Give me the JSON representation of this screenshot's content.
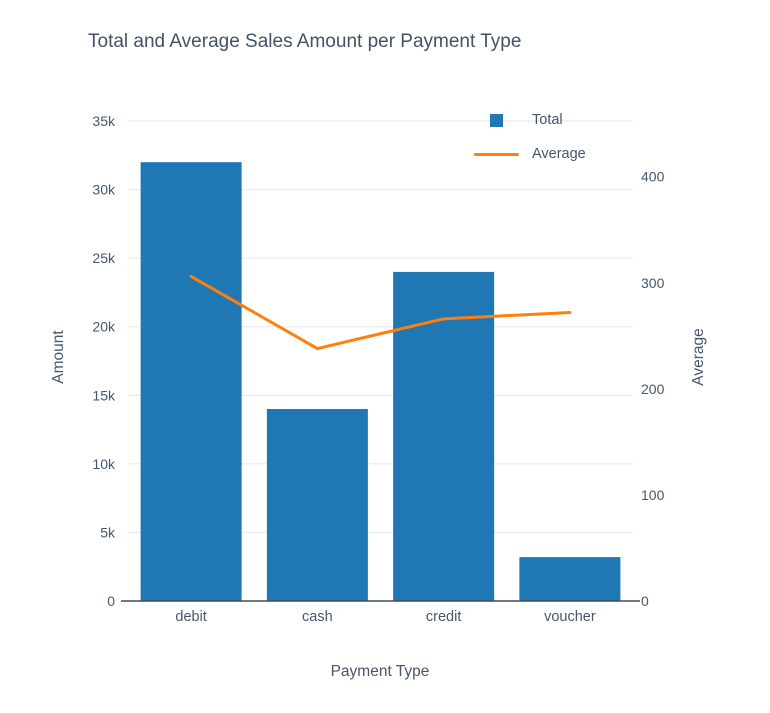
{
  "colors": {
    "bar": "#1f77b4",
    "line": "#ff7f0e",
    "text": "#47566b",
    "title_text": "#445264",
    "grid": "#ebecee",
    "axis": "#444b53",
    "background": "#ffffff"
  },
  "legend": {
    "position": "top-right-inside",
    "items": [
      {
        "label": "Total",
        "marker": "square-swatch",
        "color": "#1f77b4"
      },
      {
        "label": "Average",
        "marker": "line-swatch",
        "color": "#ff7f0e"
      }
    ]
  },
  "chart_data": {
    "type": "combo",
    "title": "Total and Average Sales Amount per Payment Type",
    "xlabel": "Payment Type",
    "ylabel_left": "Amount",
    "ylabel_right": "Average",
    "categories": [
      "debit",
      "cash",
      "credit",
      "voucher"
    ],
    "series": [
      {
        "name": "Total",
        "type": "bar",
        "axis": "left",
        "color": "#1f77b4",
        "values": [
          32000,
          14000,
          24000,
          3200
        ]
      },
      {
        "name": "Average",
        "type": "line",
        "axis": "right",
        "color": "#ff7f0e",
        "values": [
          306,
          238,
          266,
          272
        ]
      }
    ],
    "ylim_left": [
      0,
      36900
    ],
    "ylim_right": [
      0,
      477
    ],
    "yticks_left": {
      "values": [
        0,
        5000,
        10000,
        15000,
        20000,
        25000,
        30000,
        35000
      ],
      "labels": [
        "0",
        "5k",
        "10k",
        "15k",
        "20k",
        "25k",
        "30k",
        "35k"
      ]
    },
    "yticks_right": {
      "values": [
        0,
        100,
        200,
        300,
        400
      ],
      "labels": [
        "0",
        "100",
        "200",
        "300",
        "400"
      ]
    },
    "grid": "horizontal-left-axis-only",
    "legend_position": "top-right-inside"
  }
}
